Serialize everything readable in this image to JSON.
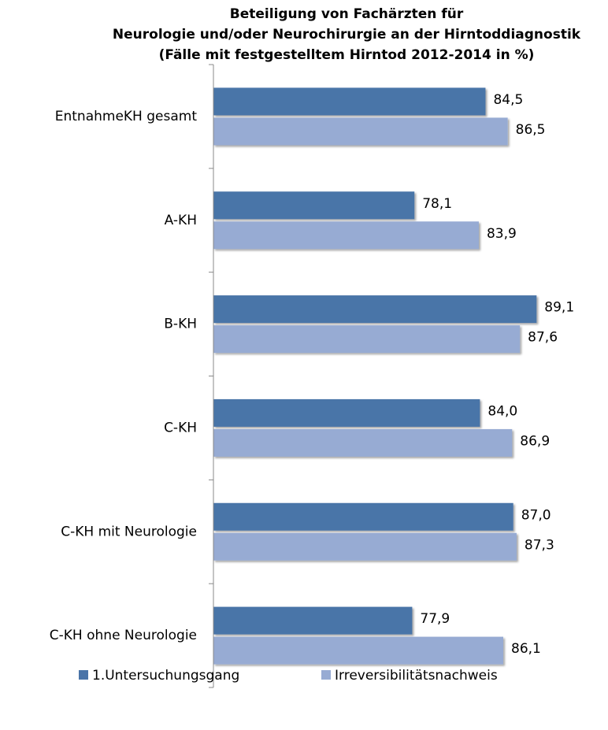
{
  "chart_data": {
    "type": "hbar",
    "title": [
      "Beteiligung von Fachärzten für",
      "Neurologie und/oder Neurochirurgie an der Hirntoddiagnostik",
      "(Fälle mit festgestelltem Hirntod 2012-2014 in %)"
    ],
    "categories": [
      "EntnahmeKH gesamt",
      "A-KH",
      "B-KH",
      "C-KH",
      "C-KH mit Neurologie",
      "C-KH ohne Neurologie"
    ],
    "series": [
      {
        "name": "1.Untersuchungsgang",
        "color": "#4a74a8",
        "values": [
          84.5,
          78.1,
          89.1,
          84.0,
          87.0,
          77.9
        ],
        "value_labels": [
          "84,5",
          "78,1",
          "89,1",
          "84,0",
          "87,0",
          "77,9"
        ]
      },
      {
        "name": "Irreversibilitätsnachweis",
        "color": "#97abd3",
        "values": [
          86.5,
          83.9,
          87.6,
          86.9,
          87.3,
          86.1
        ],
        "value_labels": [
          "86,5",
          "83,9",
          "87,6",
          "86,9",
          "87,3",
          "86,1"
        ]
      }
    ],
    "xlim": [
      60,
      90
    ],
    "legend": "bottom"
  }
}
